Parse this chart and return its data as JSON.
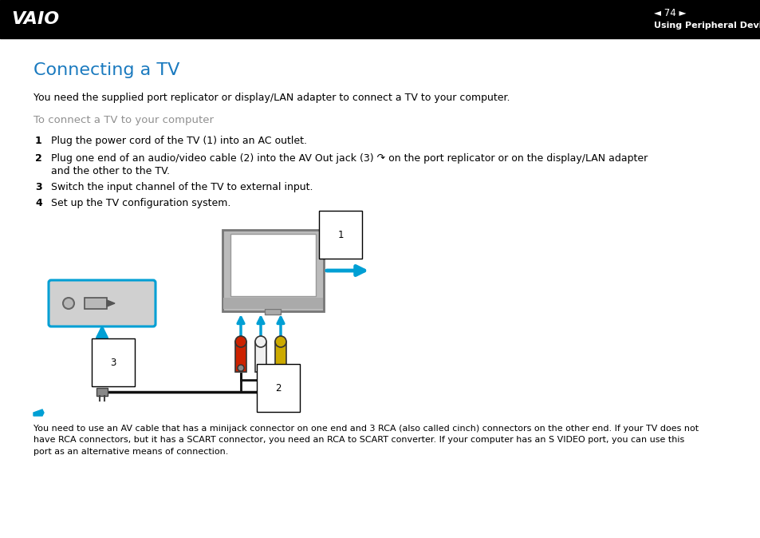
{
  "bg_color": "#ffffff",
  "header_bg": "#000000",
  "header_text_color": "#ffffff",
  "header_page": "74",
  "header_subtitle": "Using Peripheral Devices",
  "title": "Connecting a TV",
  "title_color": "#1a7abf",
  "subtitle_color": "#909090",
  "body_color": "#000000",
  "intro_text": "You need the supplied port replicator or display/LAN adapter to connect a TV to your computer.",
  "section_title": "To connect a TV to your computer",
  "step1": "Plug the power cord of the TV (1) into an AC outlet.",
  "step2a": "Plug one end of an audio/video cable (2) into the AV Out jack (3) ↷ on the port replicator or on the display/LAN adapter",
  "step2b": "and the other to the TV.",
  "step3": "Switch the input channel of the TV to external input.",
  "step4": "Set up the TV configuration system.",
  "note_text": "You need to use an AV cable that has a minijack connector on one end and 3 RCA (also called cinch) connectors on the other end. If your TV does not\nhave RCA connectors, but it has a SCART connector, you need an RCA to SCART converter. If your computer has an S VIDEO port, you can use this\nport as an alternative means of connection.",
  "arrow_color": "#009fd4",
  "cable_color": "#111111",
  "connector_red": "#cc2200",
  "connector_white": "#f0f0f0",
  "connector_yellow": "#ccaa00",
  "connector_border": "#333333",
  "tv_frame_color": "#bbbbbb",
  "port_rep_color": "#d0d0d0",
  "port_rep_border": "#009fd4"
}
